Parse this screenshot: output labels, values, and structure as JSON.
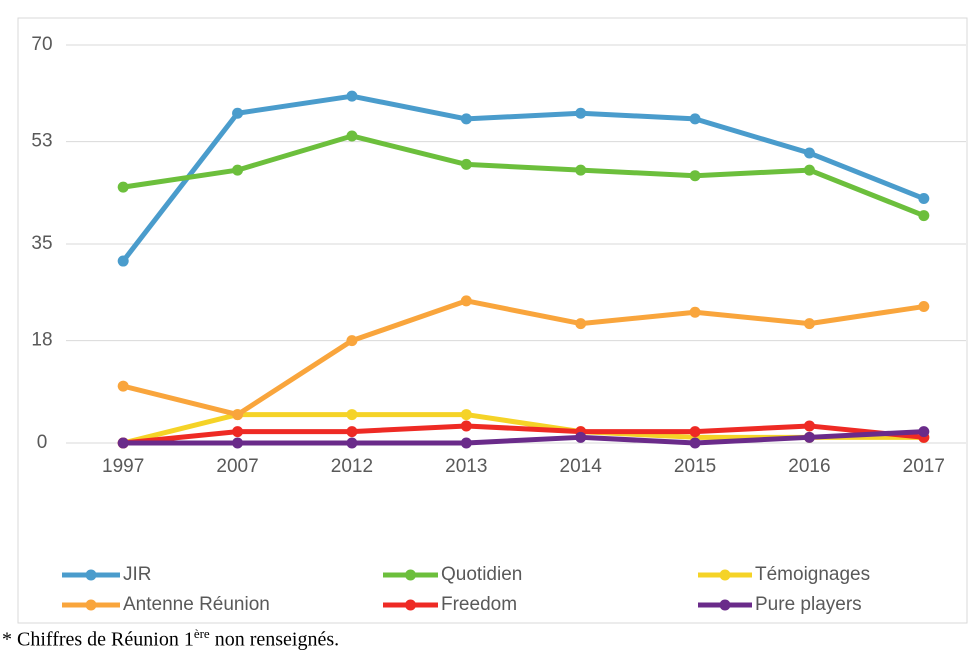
{
  "chart_data": {
    "type": "line",
    "categories": [
      "1997",
      "2007",
      "2012",
      "2013",
      "2014",
      "2015",
      "2016",
      "2017"
    ],
    "series": [
      {
        "name": "JIR",
        "color": "#4a9ccc",
        "values": [
          32,
          58,
          61,
          57,
          58,
          57,
          51,
          43
        ]
      },
      {
        "name": "Quotidien",
        "color": "#6cbf3c",
        "values": [
          45,
          48,
          54,
          49,
          48,
          47,
          48,
          40
        ]
      },
      {
        "name": "Témoignages",
        "color": "#f5d327",
        "values": [
          0,
          5,
          5,
          5,
          2,
          1,
          1,
          1
        ]
      },
      {
        "name": "Antenne Réunion",
        "color": "#f9a53c",
        "values": [
          10,
          5,
          18,
          25,
          21,
          23,
          21,
          24
        ]
      },
      {
        "name": "Freedom",
        "color": "#ee2a24",
        "values": [
          0,
          2,
          2,
          3,
          2,
          2,
          3,
          1
        ]
      },
      {
        "name": "Pure players",
        "color": "#6a2b8a",
        "values": [
          0,
          0,
          0,
          0,
          1,
          0,
          1,
          2
        ]
      }
    ],
    "ylim": [
      0,
      70
    ],
    "yticks": [
      0,
      18,
      35,
      53,
      70
    ],
    "grid": true,
    "footnote": [
      "* Chiffres de Réunion 1",
      "ère",
      " non renseignés."
    ]
  }
}
